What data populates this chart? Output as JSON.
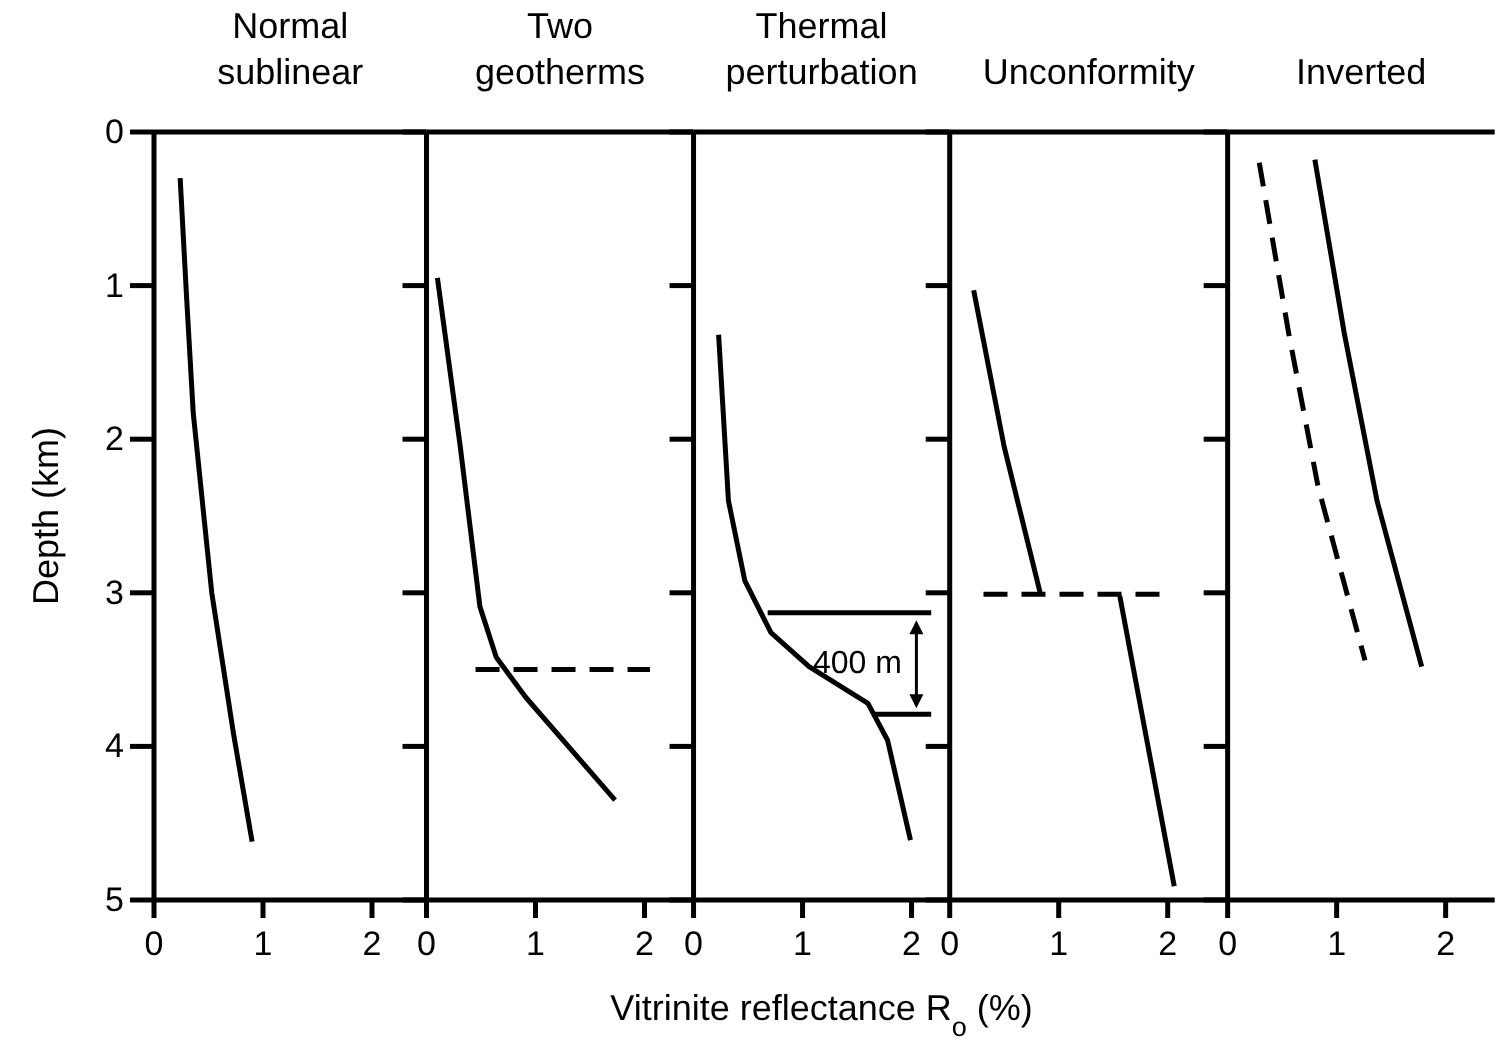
{
  "chart_data": [
    {
      "type": "line",
      "title": "Normal\nsublinear",
      "ylabel": "Depth (km)",
      "xlim": [
        0,
        2.5
      ],
      "xticks": [
        0,
        1,
        2
      ],
      "ylim": [
        5,
        0
      ],
      "yticks": [
        0,
        1,
        2,
        3,
        4,
        5
      ],
      "line_style": "solid",
      "marker": "none",
      "grid": false,
      "series": [
        {
          "color": "#000000",
          "x": [
            0.24,
            0.3,
            0.36,
            0.53,
            0.73,
            0.9
          ],
          "values": [
            0.3,
            1.09,
            1.83,
            3.0,
            3.92,
            4.62
          ]
        }
      ]
    },
    {
      "type": "line",
      "title": "Two\ngeotherms",
      "xlim": [
        0,
        2.45
      ],
      "xticks": [
        0,
        1,
        2
      ],
      "ylim": [
        5,
        0
      ],
      "yticks": [
        0,
        1,
        2,
        3,
        4,
        5
      ],
      "tick_labels": "x",
      "line_style": "solid",
      "marker": "none",
      "grid": false,
      "series": [
        {
          "color": "#000000",
          "x": [
            0.1,
            0.31,
            0.49,
            0.64,
            0.91,
            1.73
          ],
          "values": [
            0.95,
            2.05,
            3.09,
            3.42,
            3.68,
            4.35
          ]
        },
        {
          "color": "#000000",
          "line_style": "dashed",
          "x": [
            0.45,
            2.05
          ],
          "values": [
            3.5,
            3.5
          ]
        }
      ]
    },
    {
      "type": "line",
      "title": "Thermal\nperturbation",
      "xlabel": "Vitrinite reflectance R$_{o}$ (%)",
      "xlim": [
        0,
        2.35
      ],
      "xticks": [
        0,
        1,
        2
      ],
      "ylim": [
        5,
        0
      ],
      "yticks": [
        0,
        1,
        2,
        3,
        4,
        5
      ],
      "tick_labels": "x",
      "line_style": "solid",
      "marker": "none",
      "grid": false,
      "annotations": [
        "400 m"
      ],
      "series": [
        {
          "color": "#000000",
          "x": [
            0.23,
            0.32,
            0.47,
            0.71,
            1.06,
            1.6,
            1.78,
            1.99
          ],
          "values": [
            1.32,
            2.4,
            2.92,
            3.26,
            3.48,
            3.72,
            3.96,
            4.61
          ]
        },
        {
          "color": "#000000",
          "x": [
            0.68,
            2.18
          ],
          "values": [
            3.13,
            3.13
          ]
        },
        {
          "color": "#000000",
          "x": [
            1.66,
            2.18
          ],
          "values": [
            3.79,
            3.79
          ]
        }
      ]
    },
    {
      "type": "line",
      "title": "Unconformity",
      "xlim": [
        0,
        2.55
      ],
      "xticks": [
        0,
        1,
        2
      ],
      "ylim": [
        5,
        0
      ],
      "yticks": [
        0,
        1,
        2,
        3,
        4,
        5
      ],
      "tick_labels": "x",
      "line_style": "solid",
      "marker": "none",
      "grid": false,
      "series": [
        {
          "color": "#000000",
          "x": [
            0.22,
            0.5,
            0.83
          ],
          "values": [
            1.03,
            2.05,
            3.0
          ]
        },
        {
          "color": "#000000",
          "line_style": "dashed",
          "x": [
            0.31,
            1.96
          ],
          "values": [
            3.01,
            3.01
          ]
        },
        {
          "color": "#000000",
          "x": [
            1.56,
            2.06
          ],
          "values": [
            3.02,
            4.91
          ]
        }
      ]
    },
    {
      "type": "line",
      "title": "Inverted",
      "xlim": [
        0,
        2.45
      ],
      "xticks": [
        0,
        1,
        2
      ],
      "ylim": [
        5,
        0
      ],
      "yticks": [
        0,
        1,
        2,
        3,
        4,
        5
      ],
      "tick_labels": "x",
      "line_style": "solid",
      "marker": "none",
      "grid": false,
      "series": [
        {
          "color": "#000000",
          "x": [
            0.8,
            1.07,
            1.37,
            1.78
          ],
          "values": [
            0.18,
            1.31,
            2.4,
            3.48
          ]
        },
        {
          "color": "#000000",
          "line_style": "dashed",
          "x": [
            0.29,
            0.56,
            0.83,
            1.26
          ],
          "values": [
            0.2,
            1.31,
            2.31,
            3.44
          ]
        }
      ]
    }
  ]
}
